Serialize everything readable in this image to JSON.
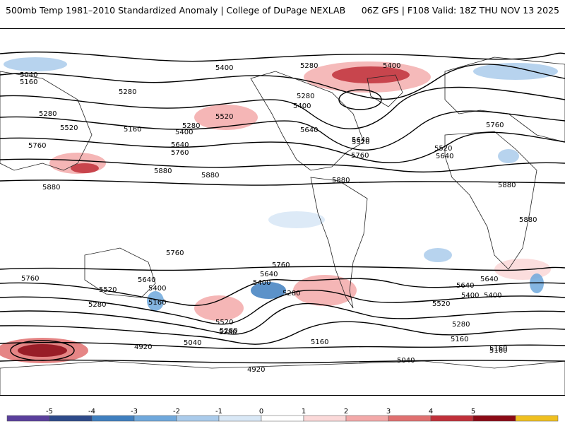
{
  "header": {
    "left_title": "500mb Temp 1981–2010 Standardized Anomaly | College of DuPage NEXLAB",
    "right_title": "06Z GFS | F108 Valid: 18Z THU NOV 13 2025"
  },
  "map": {
    "contour_labels": [
      "5400",
      "5280",
      "5400",
      "5040",
      "5160",
      "5280",
      "5280",
      "5400",
      "5520",
      "5280",
      "5160",
      "5520",
      "5400",
      "5280",
      "5640",
      "5760",
      "5760",
      "5640",
      "5880",
      "5880",
      "5880",
      "5640",
      "5520",
      "5760",
      "5520",
      "5640",
      "5880",
      "5880",
      "5880",
      "5760",
      "5760",
      "5640",
      "5520",
      "5400",
      "5280",
      "5160",
      "5640",
      "5400",
      "5280",
      "5760",
      "5640",
      "5400",
      "5280",
      "5160",
      "5520",
      "5280",
      "5160",
      "5040",
      "4920",
      "4920",
      "5040",
      "5760",
      "5640",
      "5400",
      "5520",
      "5280",
      "5160",
      "5160"
    ]
  },
  "colorbar": {
    "tick_labels": [
      "-5",
      "-4",
      "-3",
      "-2",
      "-1",
      "0",
      "1",
      "2",
      "3",
      "4",
      "5"
    ],
    "colors": [
      "#5a3f9c",
      "#2d4a8a",
      "#3f7fbf",
      "#6fa8dc",
      "#aacbeb",
      "#d9e8f6",
      "#ffffff",
      "#fbd9d9",
      "#f3a9a9",
      "#e07070",
      "#c0303a",
      "#8b0a16",
      "#f0c020"
    ]
  }
}
